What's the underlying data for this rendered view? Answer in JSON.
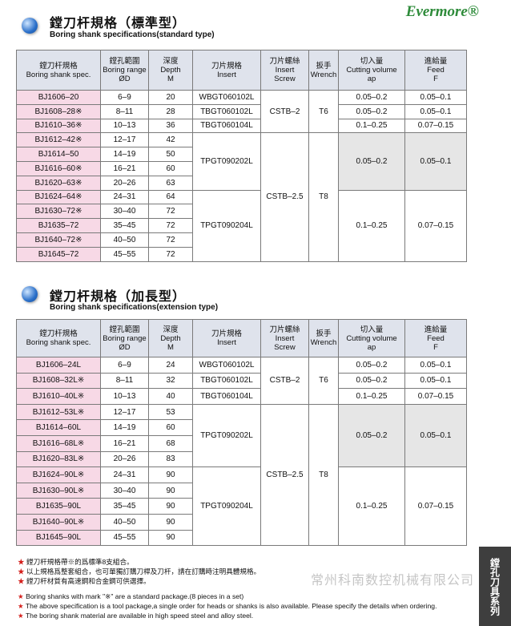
{
  "logo": "Evermore®",
  "sections": [
    {
      "title": "鏜刀杆規格（標準型）",
      "subtitle": "Boring shank specifications(standard type)",
      "table": {
        "header": [
          [
            "鏜刀杆規格",
            "Boring shank spec."
          ],
          [
            "鏜孔範圍",
            "Boring range",
            "ØD"
          ],
          [
            "深度",
            "Depth",
            "M"
          ],
          [
            "刀片規格",
            "Insert"
          ],
          [
            "刀片螺絲",
            "Insert",
            "Screw"
          ],
          [
            "扳手",
            "Wrench"
          ],
          [
            "切入量",
            "Cutting volume",
            "ap"
          ],
          [
            "進給量",
            "Feed",
            "F"
          ]
        ],
        "rows": [
          [
            "BJ1606–20",
            "6–9",
            20,
            "WBGT060102L",
            "CSTB–2",
            "T6",
            "0.05–0.2",
            "0.05–0.1"
          ],
          [
            "BJ1608–28※",
            "8–11",
            28,
            "TBGT060102L",
            null,
            null,
            "0.05–0.2",
            "0.05–0.1"
          ],
          [
            "BJ1610–36※",
            "10–13",
            36,
            "TBGT060104L",
            null,
            null,
            "0.1–0.25",
            "0.07–0.15"
          ],
          [
            "BJ1612–42※",
            "12–17",
            42,
            "TPGT090202L",
            "CSTB–2.5",
            "T8",
            "0.05–0.2",
            "0.05–0.1"
          ],
          [
            "BJ1614–50",
            "14–19",
            50,
            null,
            null,
            null,
            null,
            null
          ],
          [
            "BJ1616–60※",
            "16–21",
            60,
            null,
            null,
            null,
            null,
            null
          ],
          [
            "BJ1620–63※",
            "20–26",
            63,
            null,
            null,
            null,
            null,
            null
          ],
          [
            "BJ1624–64※",
            "24–31",
            64,
            "TPGT090204L",
            null,
            null,
            "0.1–0.25",
            "0.07–0.15"
          ],
          [
            "BJ1630–72※",
            "30–40",
            72,
            null,
            null,
            null,
            null,
            null
          ],
          [
            "BJ1635–72",
            "35–45",
            72,
            null,
            null,
            null,
            null,
            null
          ],
          [
            "BJ1640–72※",
            "40–50",
            72,
            null,
            null,
            null,
            null,
            null
          ],
          [
            "BJ1645–72",
            "45–55",
            72,
            null,
            null,
            null,
            null,
            null
          ]
        ]
      }
    },
    {
      "title": "鏜刀杆規格（加長型）",
      "subtitle": "Boring shank specifications(extension type)",
      "table": {
        "header": [
          [
            "鏜刀杆規格",
            "Boring shank spec."
          ],
          [
            "鏜孔範圍",
            "Boring range",
            "ØD"
          ],
          [
            "深度",
            "Depth",
            "M"
          ],
          [
            "刀片規格",
            "Insert"
          ],
          [
            "刀片螺絲",
            "Insert",
            "Screw"
          ],
          [
            "扳手",
            "Wrench"
          ],
          [
            "切入量",
            "Cutting volume",
            "ap"
          ],
          [
            "進給量",
            "Feed",
            "F"
          ]
        ],
        "rows": [
          [
            "BJ1606–24L",
            "6–9",
            24,
            "WBGT060102L",
            "CSTB–2",
            "T6",
            "0.05–0.2",
            "0.05–0.1"
          ],
          [
            "BJ1608–32L※",
            "8–11",
            32,
            "TBGT060102L",
            null,
            null,
            "0.05–0.2",
            "0.05–0.1"
          ],
          [
            "BJ1610–40L※",
            "10–13",
            40,
            "TBGT060104L",
            null,
            null,
            "0.1–0.25",
            "0.07–0.15"
          ],
          [
            "BJ1612–53L※",
            "12–17",
            53,
            "TPGT090202L",
            "CSTB–2.5",
            "T8",
            "0.05–0.2",
            "0.05–0.1"
          ],
          [
            "BJ1614–60L",
            "14–19",
            60,
            null,
            null,
            null,
            null,
            null
          ],
          [
            "BJ1616–68L※",
            "16–21",
            68,
            null,
            null,
            null,
            null,
            null
          ],
          [
            "BJ1620–83L※",
            "20–26",
            83,
            null,
            null,
            null,
            null,
            null
          ],
          [
            "BJ1624–90L※",
            "24–31",
            90,
            "TPGT090204L",
            null,
            null,
            "0.1–0.25",
            "0.07–0.15"
          ],
          [
            "BJ1630–90L※",
            "30–40",
            90,
            null,
            null,
            null,
            null,
            null
          ],
          [
            "BJ1635–90L",
            "35–45",
            90,
            null,
            null,
            null,
            null,
            null
          ],
          [
            "BJ1640–90L※",
            "40–50",
            90,
            null,
            null,
            null,
            null,
            null
          ],
          [
            "BJ1645–90L",
            "45–55",
            90,
            null,
            null,
            null,
            null,
            null
          ]
        ]
      }
    }
  ],
  "notes": [
    "鏜刀杆規格帶※的爲標準8支組合。",
    "以上規格爲整套組合，也可單獨訂購刀桿及刀杆，請在訂購時注明具體規格。",
    "鏜刀杆材質有高速鋼和合金鋼可供選擇。",
    "Boring shanks with mark \"※\" are a standard package.(8 pieces in a set)",
    "The above specification is a tool package,a single order for heads or shanks is also available. Please specify the details when ordering.",
    "The boring shank material are available in high speed steel and alloy steel."
  ],
  "side_label": "鏜孔刀具系列",
  "watermark": "常州科南数控机械有限公司"
}
